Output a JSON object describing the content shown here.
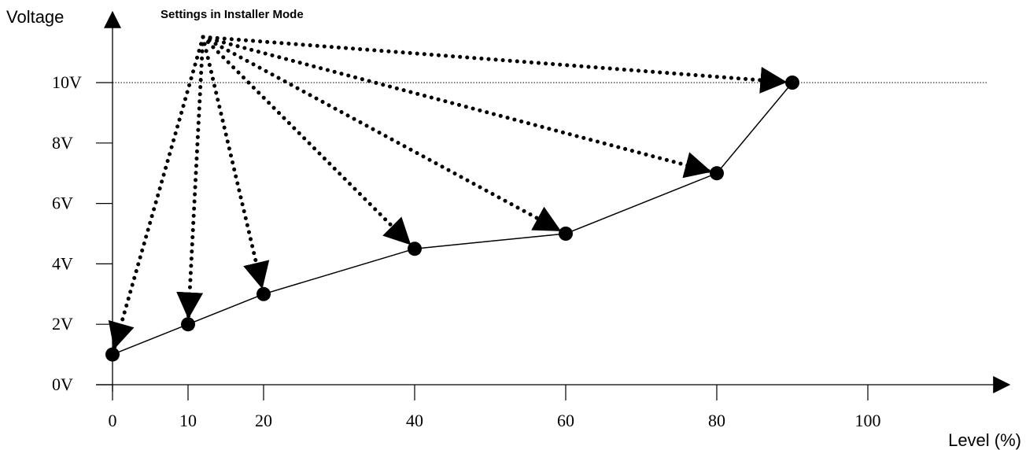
{
  "chart_data": {
    "type": "line",
    "title": "Settings in Installer Mode",
    "xlabel": "Level (%)",
    "ylabel": "Voltage",
    "xlim": [
      0,
      100
    ],
    "ylim": [
      0,
      10
    ],
    "x_ticks": [
      0,
      10,
      20,
      40,
      60,
      80,
      100
    ],
    "x_tick_labels": [
      "0",
      "10",
      "20",
      "40",
      "60",
      "80",
      "100"
    ],
    "y_ticks": [
      0,
      2,
      4,
      6,
      8,
      10
    ],
    "y_tick_labels": [
      "0V",
      "2V",
      "4V",
      "6V",
      "8V",
      "10V"
    ],
    "reference_line_y": 10,
    "grid": false,
    "series": [
      {
        "x": [
          0,
          10,
          20,
          40,
          60,
          80,
          90
        ],
        "y": [
          1,
          2,
          3,
          4.5,
          5,
          7,
          10
        ],
        "color": "#000000"
      }
    ],
    "annotation_arrows": {
      "style": "dotted",
      "color": "#000000",
      "origin_near_title": true,
      "targets_x": [
        0,
        10,
        20,
        40,
        60,
        80,
        90
      ]
    }
  }
}
